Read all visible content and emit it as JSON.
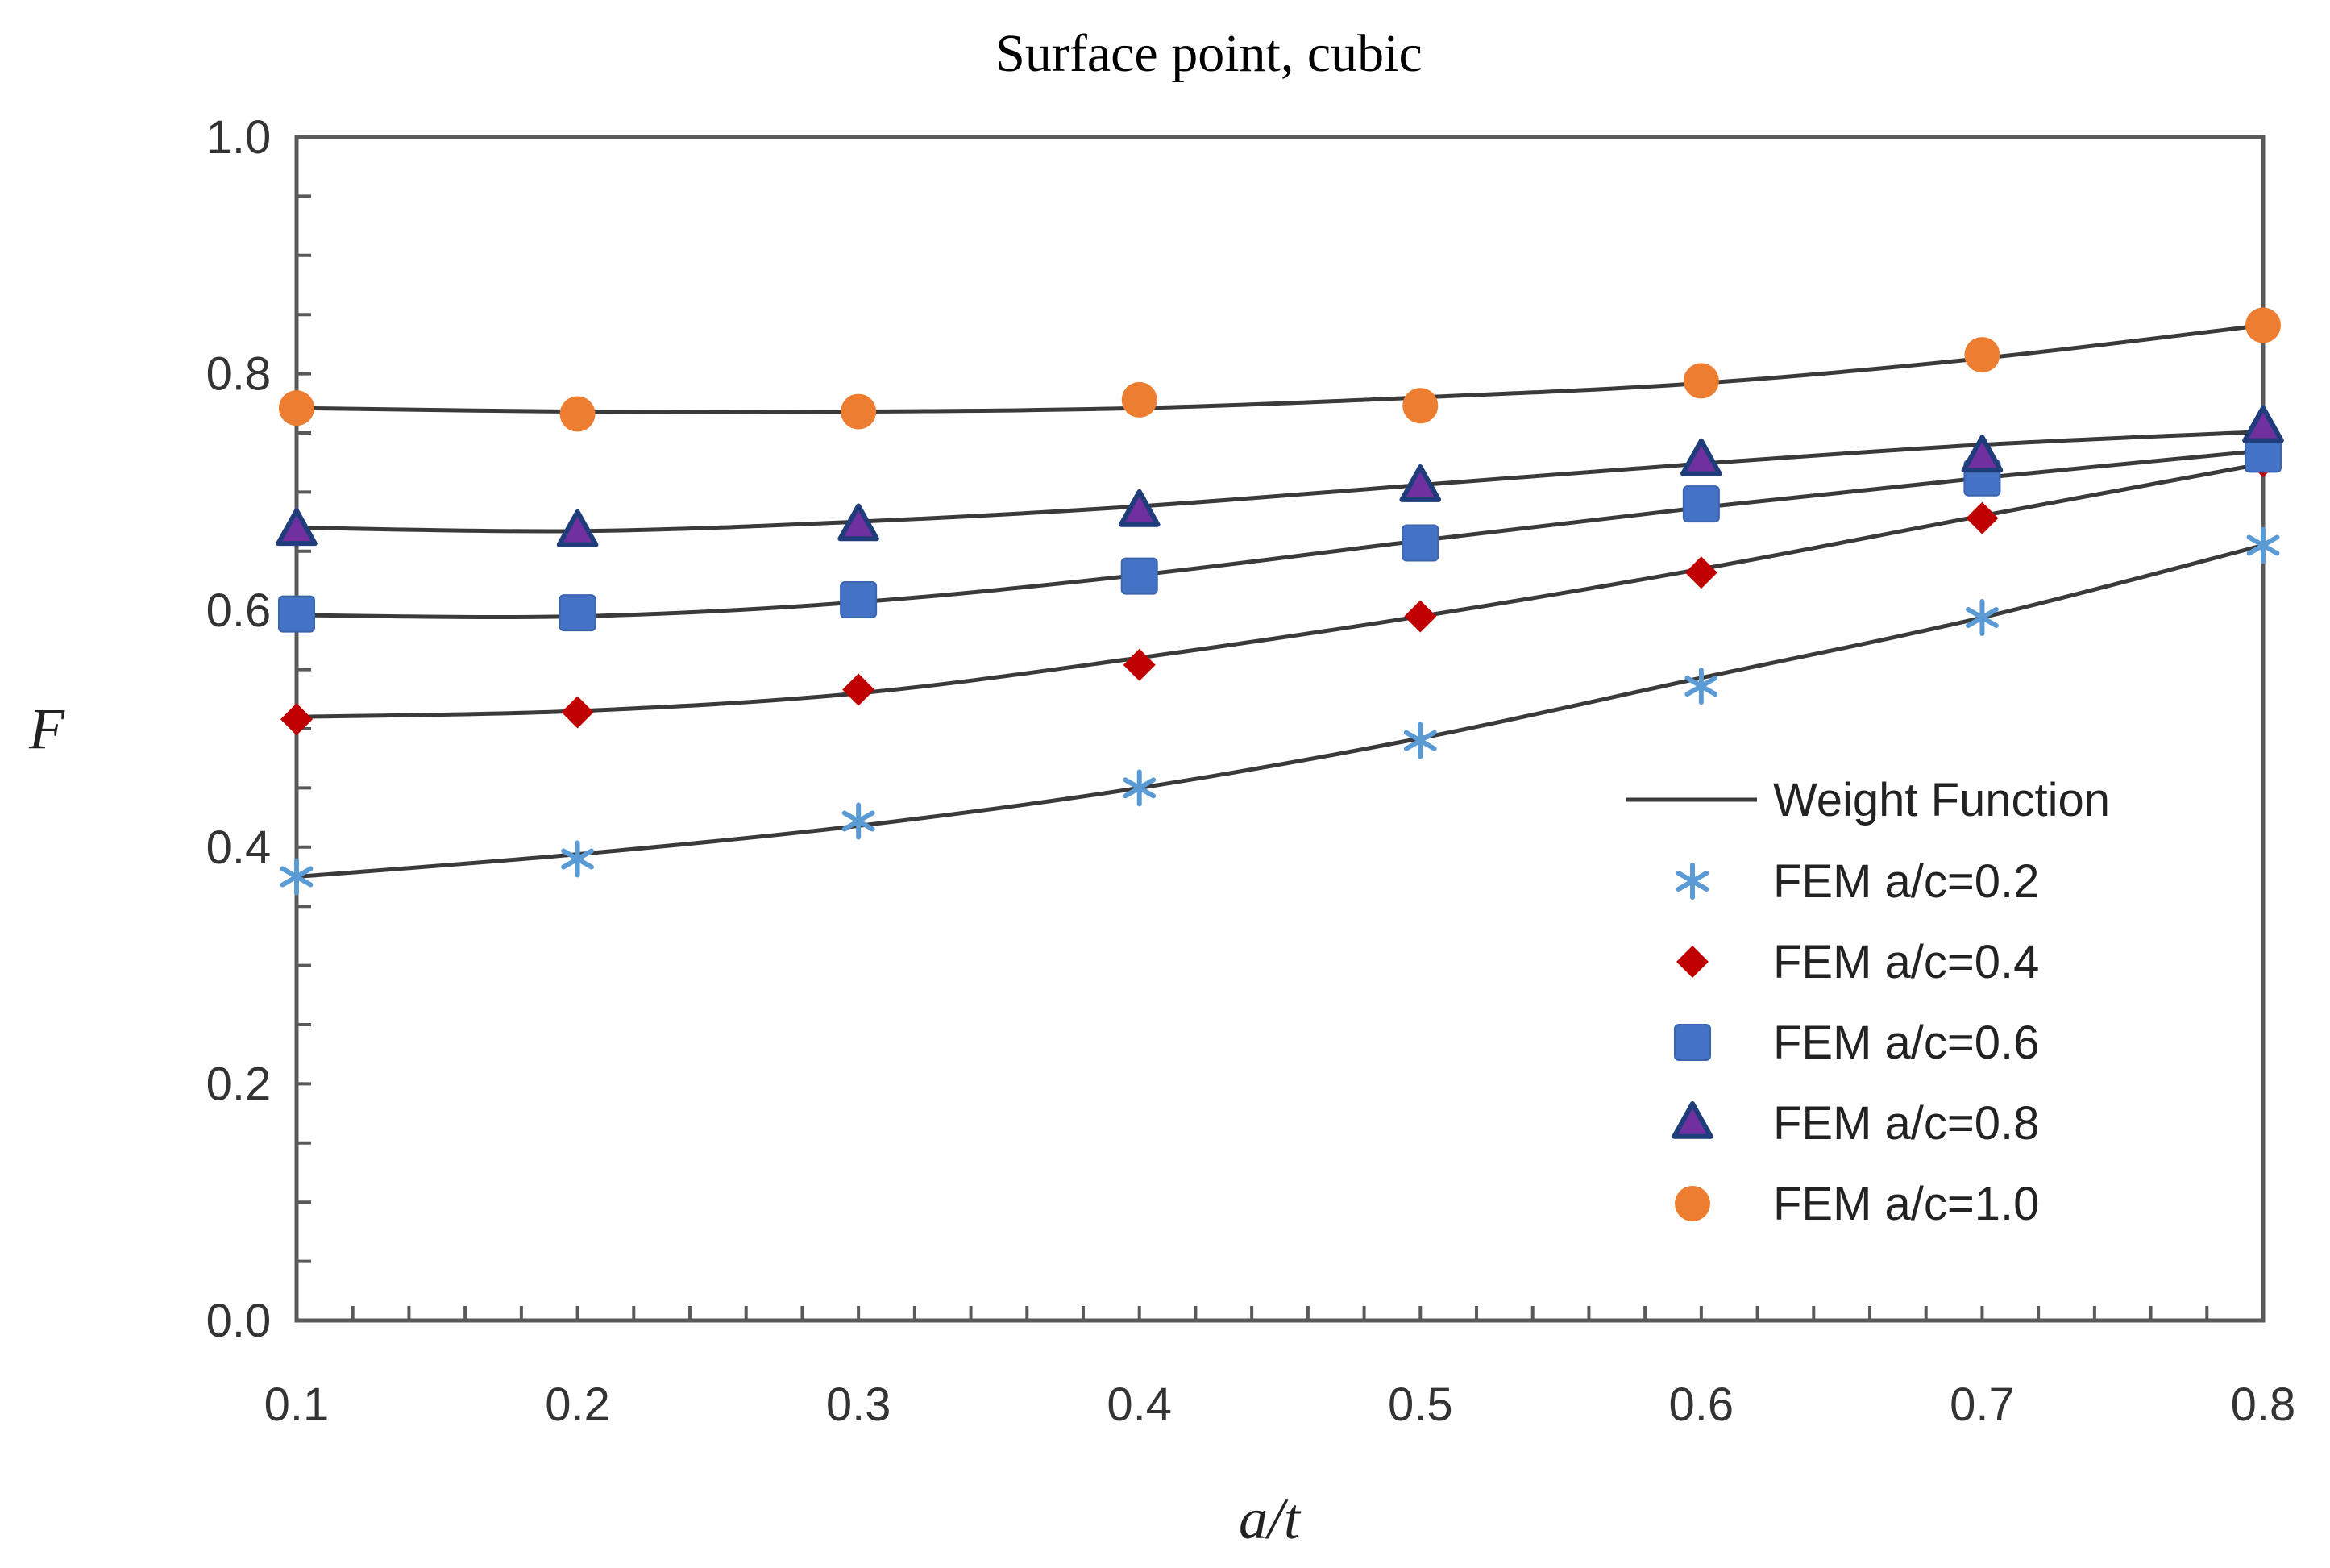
{
  "chart_data": {
    "type": "scatter",
    "title": "Surface point, cubic",
    "xlabel": "a/t",
    "ylabel": "F",
    "xlim": [
      0.1,
      0.8
    ],
    "ylim": [
      0.0,
      1.0
    ],
    "x_ticks": [
      "0.1",
      "0.2",
      "0.3",
      "0.4",
      "0.5",
      "0.6",
      "0.7",
      "0.8"
    ],
    "y_ticks": [
      "0.0",
      "0.2",
      "0.4",
      "0.6",
      "0.8",
      "1.0"
    ],
    "grid": false,
    "legend_position": "right",
    "x": [
      0.1,
      0.2,
      0.3,
      0.4,
      0.5,
      0.6,
      0.7,
      0.8
    ],
    "curve_label": "Weight Function",
    "curve_color": "#3a3a3a",
    "series": [
      {
        "name": "FEM a/c=0.2",
        "marker": "star",
        "color": "#5b9bd5",
        "values": [
          0.375,
          0.39,
          0.422,
          0.45,
          0.49,
          0.536,
          0.594,
          0.655
        ],
        "curve": [
          0.375,
          0.394,
          0.418,
          0.45,
          0.492,
          0.543,
          0.594,
          0.655
        ]
      },
      {
        "name": "FEM a/c=0.4",
        "marker": "diamond",
        "color": "#c00000",
        "values": [
          0.508,
          0.514,
          0.533,
          0.554,
          0.595,
          0.632,
          0.678,
          0.726
        ],
        "curve": [
          0.51,
          0.515,
          0.53,
          0.56,
          0.595,
          0.635,
          0.68,
          0.724
        ]
      },
      {
        "name": "FEM a/c=0.6",
        "marker": "square",
        "color": "#4472c4",
        "values": [
          0.597,
          0.598,
          0.609,
          0.629,
          0.657,
          0.69,
          0.712,
          0.732
        ],
        "curve": [
          0.596,
          0.595,
          0.607,
          0.63,
          0.659,
          0.687,
          0.712,
          0.735
        ]
      },
      {
        "name": "FEM a/c=0.8",
        "marker": "triangle",
        "color": "#1f3d7a",
        "fill": "#7030a0",
        "values": [
          0.668,
          0.667,
          0.672,
          0.684,
          0.705,
          0.727,
          0.73,
          0.755
        ],
        "curve": [
          0.67,
          0.667,
          0.675,
          0.688,
          0.706,
          0.724,
          0.74,
          0.751
        ]
      },
      {
        "name": "FEM a/c=1.0",
        "marker": "circle",
        "color": "#ed7d31",
        "values": [
          0.771,
          0.766,
          0.768,
          0.778,
          0.773,
          0.794,
          0.816,
          0.841
        ],
        "curve": [
          0.771,
          0.768,
          0.768,
          0.771,
          0.78,
          0.792,
          0.813,
          0.841
        ]
      }
    ]
  }
}
